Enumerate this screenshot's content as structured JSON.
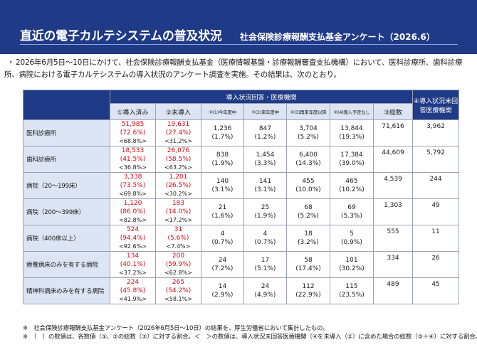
{
  "header": {
    "title": "直近の電子カルテシステムの普及状況",
    "subtitle": "社会保険診療報酬支払基金アンケート（2026.6）"
  },
  "intro": {
    "bullet": "・",
    "text": "2026年6月5日～10日にかけて、社会保険診療報酬支払基金（医療情報基盤・診療報酬審査支払機構）において、医科診療所、歯科診療所、病院における電子カルテシステムの導入状況のアンケート調査を実施。その結果は、次のとおり。"
  },
  "table": {
    "group_header": "導入状況回答・医療機関",
    "col_installed": "①導入済み",
    "col_not_installed": "②未導入",
    "col_total": "③総数",
    "col_unanswered": "④導入状況未回答医療機関",
    "sub_cols": [
      "②(1)今年度中",
      "②(2)来年度中",
      "②(3)再来年度以降",
      "②(4)導入予定なし"
    ],
    "rows": [
      {
        "label": "医科診療所",
        "installed": [
          "51,985",
          "(72.6%)",
          "<68.8%>"
        ],
        "not_installed": [
          "19,631",
          "(27.4%)",
          "<31.2%>"
        ],
        "subs": [
          [
            "1,236",
            "(1.7%)"
          ],
          [
            "847",
            "(1.2%)"
          ],
          [
            "3,704",
            "(5.2%)"
          ],
          [
            "13,844",
            "(19.3%)"
          ]
        ],
        "total": "71,616",
        "unanswered": "3,962"
      },
      {
        "label": "歯科診療所",
        "installed": [
          "18,533",
          "(41.5%)",
          "<36.8%>"
        ],
        "not_installed": [
          "26,076",
          "(58.5%)",
          "<63.2%>"
        ],
        "subs": [
          [
            "838",
            "(1.9%)"
          ],
          [
            "1,454",
            "(3.3%)"
          ],
          [
            "6,400",
            "(14.3%)"
          ],
          [
            "17,384",
            "(39.0%)"
          ]
        ],
        "total": "44,609",
        "unanswered": "5,792"
      },
      {
        "label": "病院（20～199床）",
        "installed": [
          "3,338",
          "(73.5%)",
          "<69.8%>"
        ],
        "not_installed": [
          "1,201",
          "(26.5%)",
          "<30.2%>"
        ],
        "subs": [
          [
            "140",
            "(3.1%)"
          ],
          [
            "141",
            "(3.1%)"
          ],
          [
            "455",
            "(10.0%)"
          ],
          [
            "465",
            "(10.2%)"
          ]
        ],
        "total": "4,539",
        "unanswered": "244"
      },
      {
        "label": "病院（200～399床）",
        "installed": [
          "1,120",
          "(86.0%)",
          "<82.8%>"
        ],
        "not_installed": [
          "183",
          "(14.0%)",
          "<17.2%>"
        ],
        "subs": [
          [
            "21",
            "(1.6%)"
          ],
          [
            "25",
            "(1.9%)"
          ],
          [
            "68",
            "(5.2%)"
          ],
          [
            "69",
            "(5.3%)"
          ]
        ],
        "total": "1,303",
        "unanswered": "49"
      },
      {
        "label": "病院（400床以上）",
        "installed": [
          "524",
          "(94.4%)",
          "<92.6%>"
        ],
        "not_installed": [
          "31",
          "(5.6%)",
          "<7.4%>"
        ],
        "subs": [
          [
            "4",
            "(0.7%)"
          ],
          [
            "4",
            "(0.7%)"
          ],
          [
            "18",
            "(3.2%)"
          ],
          [
            "5",
            "(0.9%)"
          ]
        ],
        "total": "555",
        "unanswered": "11"
      },
      {
        "label": "療養病床のみを有する病院",
        "installed": [
          "134",
          "(40.1%)",
          "<37.2%>"
        ],
        "not_installed": [
          "200",
          "(59.9%)",
          "<62.8%>"
        ],
        "subs": [
          [
            "24",
            "(7.2%)"
          ],
          [
            "17",
            "(5.1%)"
          ],
          [
            "58",
            "(17.4%)"
          ],
          [
            "101",
            "(30.2%)"
          ]
        ],
        "total": "334",
        "unanswered": "26"
      },
      {
        "label": "精神科病床のみを有する病院",
        "installed": [
          "224",
          "(45.8%)",
          "<41.9%>"
        ],
        "not_installed": [
          "265",
          "(54.2%)",
          "<58.1%>"
        ],
        "subs": [
          [
            "14",
            "(2.9%)"
          ],
          [
            "24",
            "(4.9%)"
          ],
          [
            "112",
            "(22.9%)"
          ],
          [
            "115",
            "(23.5%)"
          ]
        ],
        "total": "489",
        "unanswered": "45"
      }
    ]
  },
  "notes": [
    "※　社会保険診療報酬支払基金アンケート（2026年6月5日～10日）の結果を、厚生労働省において集計したもの。",
    "※　（　）の数値は、各数値（①、②の総数（③）に対する割合。＜　＞の数値は、導入状況未回答医療機関（④を未導入（②）に含めた場合の総数（③＋④）に対する割合。"
  ],
  "colors": {
    "header_bg": "#1f3a86",
    "header_cell_light": "#dde5f4",
    "highlight_red": "#d10b17"
  }
}
